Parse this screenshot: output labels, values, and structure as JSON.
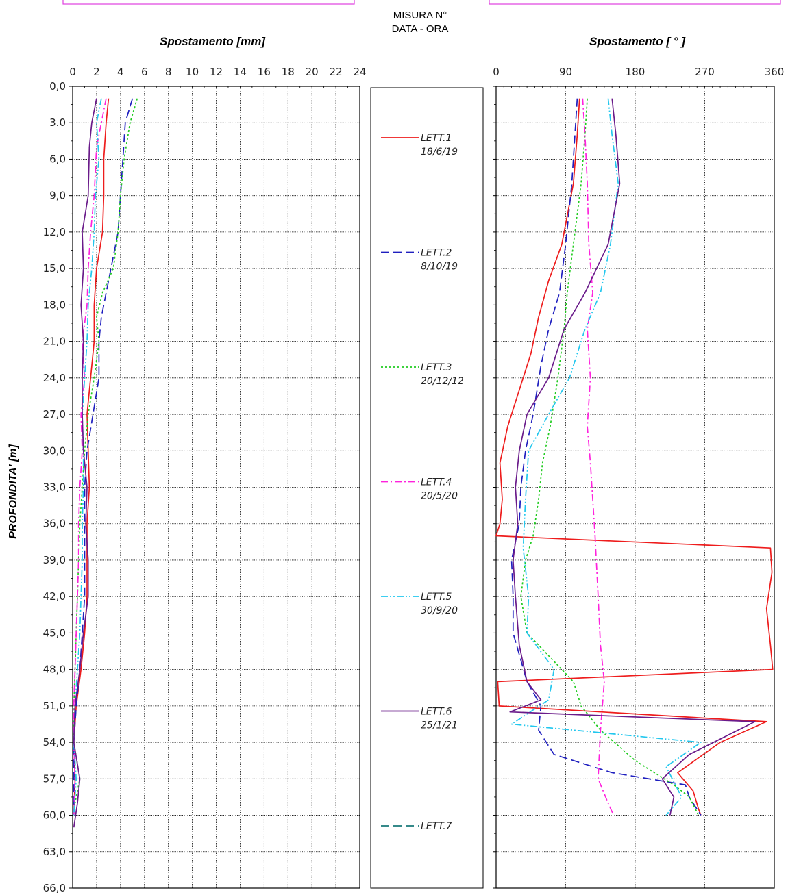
{
  "header": {
    "line1": "MISURA N°",
    "line2": "DATA - ORA"
  },
  "colors": {
    "LETT.1": "#ee1c1c",
    "LETT.2": "#1f1fbf",
    "LETT.3": "#22cc22",
    "LETT.4": "#ff22dd",
    "LETT.5": "#22c7ee",
    "LETT.6": "#6a1b8a",
    "LETT.7": "#1a7a7a"
  },
  "legend": [
    {
      "label": "LETT.1",
      "date": "18/6/19",
      "dash": "solid"
    },
    {
      "label": "LETT.2",
      "date": "8/10/19",
      "dash": "dash"
    },
    {
      "label": "LETT.3",
      "date": "20/12/12",
      "dash": "dot"
    },
    {
      "label": "LETT.4",
      "date": "20/5/20",
      "dash": "dashdot"
    },
    {
      "label": "LETT.5",
      "date": "30/9/20",
      "dash": "dashdotdot"
    },
    {
      "label": "LETT.6",
      "date": "25/1/21",
      "dash": "solid"
    },
    {
      "label": "LETT.7",
      "date": "",
      "dash": "dash"
    }
  ],
  "chart_data": [
    {
      "type": "line",
      "title": "Spostamento [mm]",
      "ylabel": "PROFONDITA' [m]",
      "xlim": [
        0,
        24
      ],
      "ylim": [
        0,
        66
      ],
      "x_ticks": [
        "0",
        "2",
        "4",
        "6",
        "8",
        "10",
        "12",
        "14",
        "16",
        "18",
        "20",
        "22",
        "24"
      ],
      "y_ticks": [
        "0,0",
        "3.0",
        "6,0",
        "9,0",
        "12,0",
        "15,0",
        "18,0",
        "21,0",
        "24,0",
        "27,0",
        "30,0",
        "33,0",
        "36,0",
        "39,0",
        "42,0",
        "45,0",
        "48,0",
        "51,0",
        "54,0",
        "57,0",
        "60,0",
        "63,0",
        "66,0"
      ],
      "series": [
        {
          "name": "LETT.1",
          "points": [
            [
              3.0,
              1
            ],
            [
              2.8,
              3
            ],
            [
              2.6,
              6
            ],
            [
              2.6,
              9
            ],
            [
              2.5,
              12
            ],
            [
              2.0,
              15
            ],
            [
              1.8,
              18
            ],
            [
              1.8,
              21
            ],
            [
              1.5,
              24
            ],
            [
              1.2,
              27
            ],
            [
              1.3,
              30
            ],
            [
              1.4,
              33
            ],
            [
              1.2,
              36
            ],
            [
              1.2,
              39
            ],
            [
              1.2,
              42
            ],
            [
              1.0,
              45
            ],
            [
              0.7,
              48
            ],
            [
              0.3,
              51
            ],
            [
              0.1,
              54
            ],
            [
              0.2,
              57
            ],
            [
              0.1,
              60
            ]
          ]
        },
        {
          "name": "LETT.2",
          "points": [
            [
              5.0,
              1
            ],
            [
              4.4,
              3
            ],
            [
              4.2,
              6
            ],
            [
              4.0,
              9
            ],
            [
              3.8,
              12
            ],
            [
              3.2,
              15
            ],
            [
              2.8,
              17
            ],
            [
              2.4,
              19
            ],
            [
              2.2,
              21
            ],
            [
              2.2,
              24
            ],
            [
              1.7,
              27
            ],
            [
              1.2,
              30
            ],
            [
              1.0,
              33
            ],
            [
              1.0,
              36
            ],
            [
              1.0,
              39
            ],
            [
              1.0,
              42
            ],
            [
              0.8,
              45
            ],
            [
              0.6,
              48
            ],
            [
              0.3,
              51
            ],
            [
              0.1,
              54
            ],
            [
              0.1,
              57
            ],
            [
              0.1,
              60
            ]
          ]
        },
        {
          "name": "LETT.3",
          "points": [
            [
              5.4,
              1
            ],
            [
              4.8,
              3
            ],
            [
              4.3,
              6
            ],
            [
              4.0,
              9
            ],
            [
              3.8,
              12
            ],
            [
              3.4,
              15
            ],
            [
              2.5,
              17
            ],
            [
              2.0,
              19
            ],
            [
              2.2,
              21
            ],
            [
              1.8,
              24
            ],
            [
              1.3,
              27
            ],
            [
              1.0,
              30
            ],
            [
              0.8,
              33
            ],
            [
              0.6,
              36
            ],
            [
              0.5,
              39
            ],
            [
              0.4,
              42
            ],
            [
              0.3,
              45
            ],
            [
              0.2,
              48
            ],
            [
              0.1,
              51
            ],
            [
              0.1,
              54
            ],
            [
              0.6,
              57
            ],
            [
              0.2,
              59
            ]
          ]
        },
        {
          "name": "LETT.4",
          "points": [
            [
              2.8,
              1
            ],
            [
              2.4,
              3
            ],
            [
              2.0,
              5
            ],
            [
              1.8,
              9
            ],
            [
              1.5,
              12
            ],
            [
              1.3,
              15
            ],
            [
              1.2,
              18
            ],
            [
              0.8,
              21
            ],
            [
              1.0,
              24
            ],
            [
              0.7,
              27
            ],
            [
              0.8,
              30
            ],
            [
              0.6,
              33
            ],
            [
              0.5,
              36
            ],
            [
              0.5,
              39
            ],
            [
              0.4,
              42
            ],
            [
              0.3,
              45
            ],
            [
              0.2,
              48
            ],
            [
              0.1,
              51
            ],
            [
              0.1,
              54
            ],
            [
              0.2,
              57
            ],
            [
              0.1,
              60
            ]
          ]
        },
        {
          "name": "LETT.5",
          "points": [
            [
              2.4,
              1
            ],
            [
              2.0,
              3
            ],
            [
              2.2,
              6
            ],
            [
              1.9,
              9
            ],
            [
              1.8,
              12
            ],
            [
              1.6,
              15
            ],
            [
              1.3,
              18
            ],
            [
              1.2,
              21
            ],
            [
              1.0,
              24
            ],
            [
              0.8,
              27
            ],
            [
              0.9,
              30
            ],
            [
              0.9,
              33
            ],
            [
              0.8,
              36
            ],
            [
              0.8,
              39
            ],
            [
              0.7,
              42
            ],
            [
              0.6,
              45
            ],
            [
              0.4,
              48
            ],
            [
              0.2,
              51
            ],
            [
              0.1,
              54
            ],
            [
              0.3,
              57
            ],
            [
              0.1,
              60
            ]
          ]
        },
        {
          "name": "LETT.6",
          "points": [
            [
              2.0,
              1
            ],
            [
              1.6,
              3
            ],
            [
              1.4,
              5
            ],
            [
              1.3,
              9
            ],
            [
              0.8,
              12
            ],
            [
              0.9,
              15
            ],
            [
              0.7,
              18
            ],
            [
              0.9,
              21
            ],
            [
              0.8,
              24
            ],
            [
              0.8,
              27
            ],
            [
              0.9,
              30
            ],
            [
              1.2,
              33
            ],
            [
              1.1,
              36
            ],
            [
              1.3,
              39
            ],
            [
              1.3,
              42
            ],
            [
              0.9,
              45
            ],
            [
              0.6,
              48
            ],
            [
              0.2,
              51
            ],
            [
              0.1,
              54
            ],
            [
              0.6,
              57
            ],
            [
              0.4,
              59
            ],
            [
              0.1,
              61
            ]
          ]
        }
      ]
    },
    {
      "type": "line",
      "title": "Spostamento [ ° ]",
      "xlim": [
        0,
        360
      ],
      "ylim": [
        0,
        66
      ],
      "x_ticks": [
        "0",
        "90",
        "180",
        "270",
        "360"
      ],
      "series": [
        {
          "name": "LETT.1",
          "points": [
            [
              108,
              1
            ],
            [
              105,
              4
            ],
            [
              100,
              8
            ],
            [
              85,
              13
            ],
            [
              68,
              16
            ],
            [
              55,
              19
            ],
            [
              45,
              22
            ],
            [
              30,
              25
            ],
            [
              15,
              28
            ],
            [
              5,
              31
            ],
            [
              8,
              34
            ],
            [
              5,
              36
            ],
            [
              0,
              37
            ],
            [
              355,
              38
            ],
            [
              357,
              40
            ],
            [
              350,
              43
            ],
            [
              355,
              46
            ],
            [
              358,
              48
            ],
            [
              2,
              49
            ],
            [
              4,
              51
            ],
            [
              350,
              52.3
            ],
            [
              290,
              54
            ],
            [
              235,
              56.5
            ],
            [
              255,
              58
            ],
            [
              262,
              59.5
            ],
            [
              265,
              60
            ]
          ]
        },
        {
          "name": "LETT.2",
          "points": [
            [
              105,
              1
            ],
            [
              102,
              4
            ],
            [
              98,
              8
            ],
            [
              90,
              13
            ],
            [
              82,
              17
            ],
            [
              68,
              20
            ],
            [
              58,
              23
            ],
            [
              48,
              27
            ],
            [
              38,
              30
            ],
            [
              32,
              33
            ],
            [
              30,
              36
            ],
            [
              20,
              39
            ],
            [
              22,
              42
            ],
            [
              22,
              45
            ],
            [
              40,
              49
            ],
            [
              58,
              51
            ],
            [
              55,
              53
            ],
            [
              75,
              55
            ],
            [
              150,
              56.5
            ],
            [
              245,
              57.5
            ],
            [
              250,
              58.5
            ],
            [
              265,
              60
            ]
          ]
        },
        {
          "name": "LETT.3",
          "points": [
            [
              118,
              1
            ],
            [
              115,
              4
            ],
            [
              110,
              8
            ],
            [
              100,
              13
            ],
            [
              92,
              17
            ],
            [
              88,
              20
            ],
            [
              80,
              24
            ],
            [
              70,
              28
            ],
            [
              60,
              31
            ],
            [
              55,
              34
            ],
            [
              48,
              37
            ],
            [
              38,
              39
            ],
            [
              32,
              42
            ],
            [
              40,
              45
            ],
            [
              70,
              47
            ],
            [
              100,
              49
            ],
            [
              110,
              51
            ],
            [
              135,
              53
            ],
            [
              180,
              55.5
            ],
            [
              230,
              57.5
            ],
            [
              250,
              58.5
            ],
            [
              262,
              60
            ]
          ]
        },
        {
          "name": "LETT.4",
          "points": [
            [
              112,
              1
            ],
            [
              115,
              4
            ],
            [
              118,
              8
            ],
            [
              120,
              13
            ],
            [
              125,
              17
            ],
            [
              118,
              20
            ],
            [
              122,
              24
            ],
            [
              118,
              28
            ],
            [
              122,
              31
            ],
            [
              125,
              34
            ],
            [
              128,
              37
            ],
            [
              132,
              42
            ],
            [
              135,
              46
            ],
            [
              140,
              49
            ],
            [
              135,
              53
            ],
            [
              132,
              57
            ],
            [
              145,
              59
            ],
            [
              152,
              60
            ]
          ]
        },
        {
          "name": "LETT.5",
          "points": [
            [
              145,
              1
            ],
            [
              150,
              4
            ],
            [
              158,
              8
            ],
            [
              148,
              13
            ],
            [
              135,
              17
            ],
            [
              115,
              20
            ],
            [
              95,
              24
            ],
            [
              68,
              27
            ],
            [
              42,
              30
            ],
            [
              38,
              34
            ],
            [
              35,
              38
            ],
            [
              42,
              42
            ],
            [
              40,
              45
            ],
            [
              75,
              48
            ],
            [
              68,
              50.5
            ],
            [
              20,
              52.5
            ],
            [
              265,
              54
            ],
            [
              220,
              56
            ],
            [
              240,
              58.5
            ],
            [
              220,
              60
            ]
          ]
        },
        {
          "name": "LETT.6",
          "points": [
            [
              150,
              1
            ],
            [
              155,
              4
            ],
            [
              160,
              8
            ],
            [
              145,
              13
            ],
            [
              115,
              17
            ],
            [
              88,
              20
            ],
            [
              68,
              24
            ],
            [
              40,
              27
            ],
            [
              30,
              30
            ],
            [
              25,
              33
            ],
            [
              28,
              36
            ],
            [
              22,
              39
            ],
            [
              25,
              42
            ],
            [
              30,
              46
            ],
            [
              40,
              49
            ],
            [
              58,
              50.5
            ],
            [
              18,
              51.5
            ],
            [
              335,
              52.3
            ],
            [
              250,
              55
            ],
            [
              215,
              57
            ],
            [
              230,
              58.5
            ],
            [
              225,
              60
            ]
          ]
        }
      ]
    }
  ]
}
